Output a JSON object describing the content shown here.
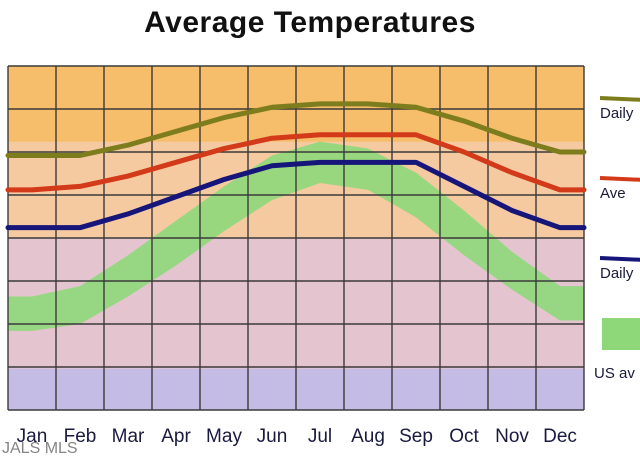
{
  "chart_data": {
    "type": "line",
    "title": "Average Temperatures",
    "categories": [
      "Jan",
      "Feb",
      "Mar",
      "Apr",
      "May",
      "Jun",
      "Jul",
      "Aug",
      "Sep",
      "Oct",
      "Nov",
      "Dec"
    ],
    "ylim": [
      0,
      100
    ],
    "grid": true,
    "legend": "right",
    "series": [
      {
        "name": "Daily high",
        "legend_label": "Daily",
        "color": "#7d7d1e",
        "values": [
          74,
          74,
          77,
          81,
          85,
          88,
          89,
          89,
          88,
          84,
          79,
          75
        ]
      },
      {
        "name": "Average",
        "legend_label": "Ave",
        "color": "#d23a1a",
        "values": [
          64,
          65,
          68,
          72,
          76,
          79,
          80,
          80,
          80,
          75,
          69,
          64
        ]
      },
      {
        "name": "Daily low",
        "legend_label": "Daily",
        "color": "#15157a",
        "values": [
          53,
          53,
          57,
          62,
          67,
          71,
          72,
          72,
          72,
          65,
          58,
          53
        ]
      }
    ],
    "us_average_band": {
      "label": "US av",
      "color": "#8ed87a",
      "upper": [
        33,
        36,
        45,
        55,
        65,
        74,
        78,
        76,
        69,
        58,
        46,
        36
      ],
      "lower": [
        23,
        25,
        33,
        42,
        52,
        61,
        66,
        64,
        56,
        45,
        35,
        26
      ]
    },
    "background_colors": {
      "hot": "#f6bd6a",
      "warm": "#f5caa0",
      "mid": "#e4c5cf",
      "cool": "#c4bce4",
      "us_band": "#8ed87a"
    }
  },
  "watermark": "JALS MLS"
}
